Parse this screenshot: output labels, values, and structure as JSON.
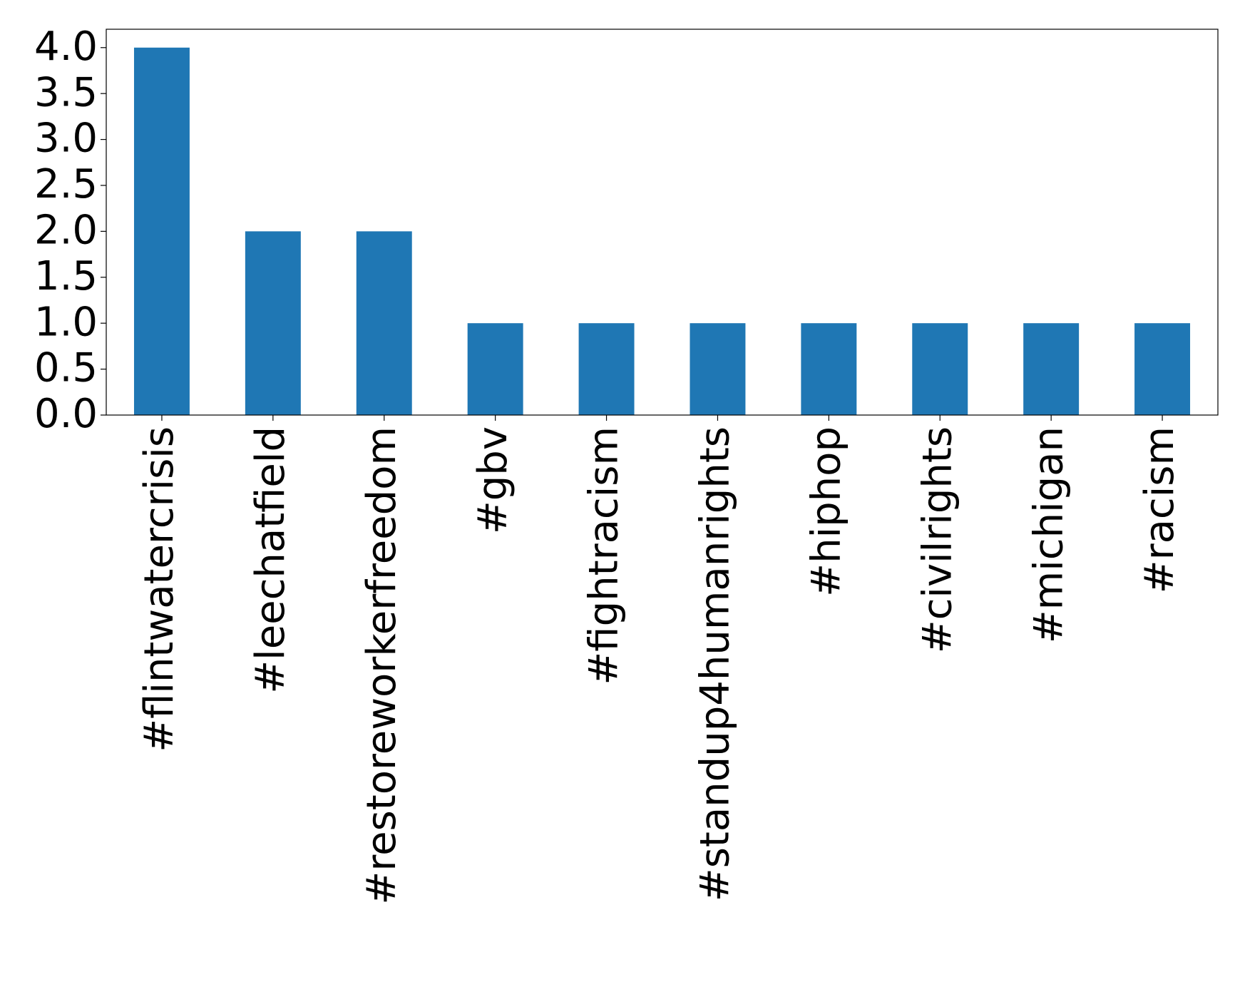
{
  "chart_data": {
    "type": "bar",
    "categories": [
      "#flintwatercrisis",
      "#leechatfield",
      "#restoreworkerfreedom",
      "#gbv",
      "#fightracism",
      "#standup4humanrights",
      "#hiphop",
      "#civilrights",
      "#michigan",
      "#racism"
    ],
    "values": [
      4,
      2,
      2,
      1,
      1,
      1,
      1,
      1,
      1,
      1
    ],
    "color": "#1f77b4",
    "ylim": [
      0,
      4.2
    ],
    "yticks": [
      {
        "value": 0,
        "label": "0.0"
      },
      0.5,
      {
        "value": 1,
        "label": "1.0"
      },
      1.5,
      {
        "value": 2,
        "label": "2.0"
      },
      2.5,
      {
        "value": 3,
        "label": "3.0"
      },
      3.5,
      {
        "value": 4,
        "label": "4.0"
      }
    ],
    "grid": false
  }
}
